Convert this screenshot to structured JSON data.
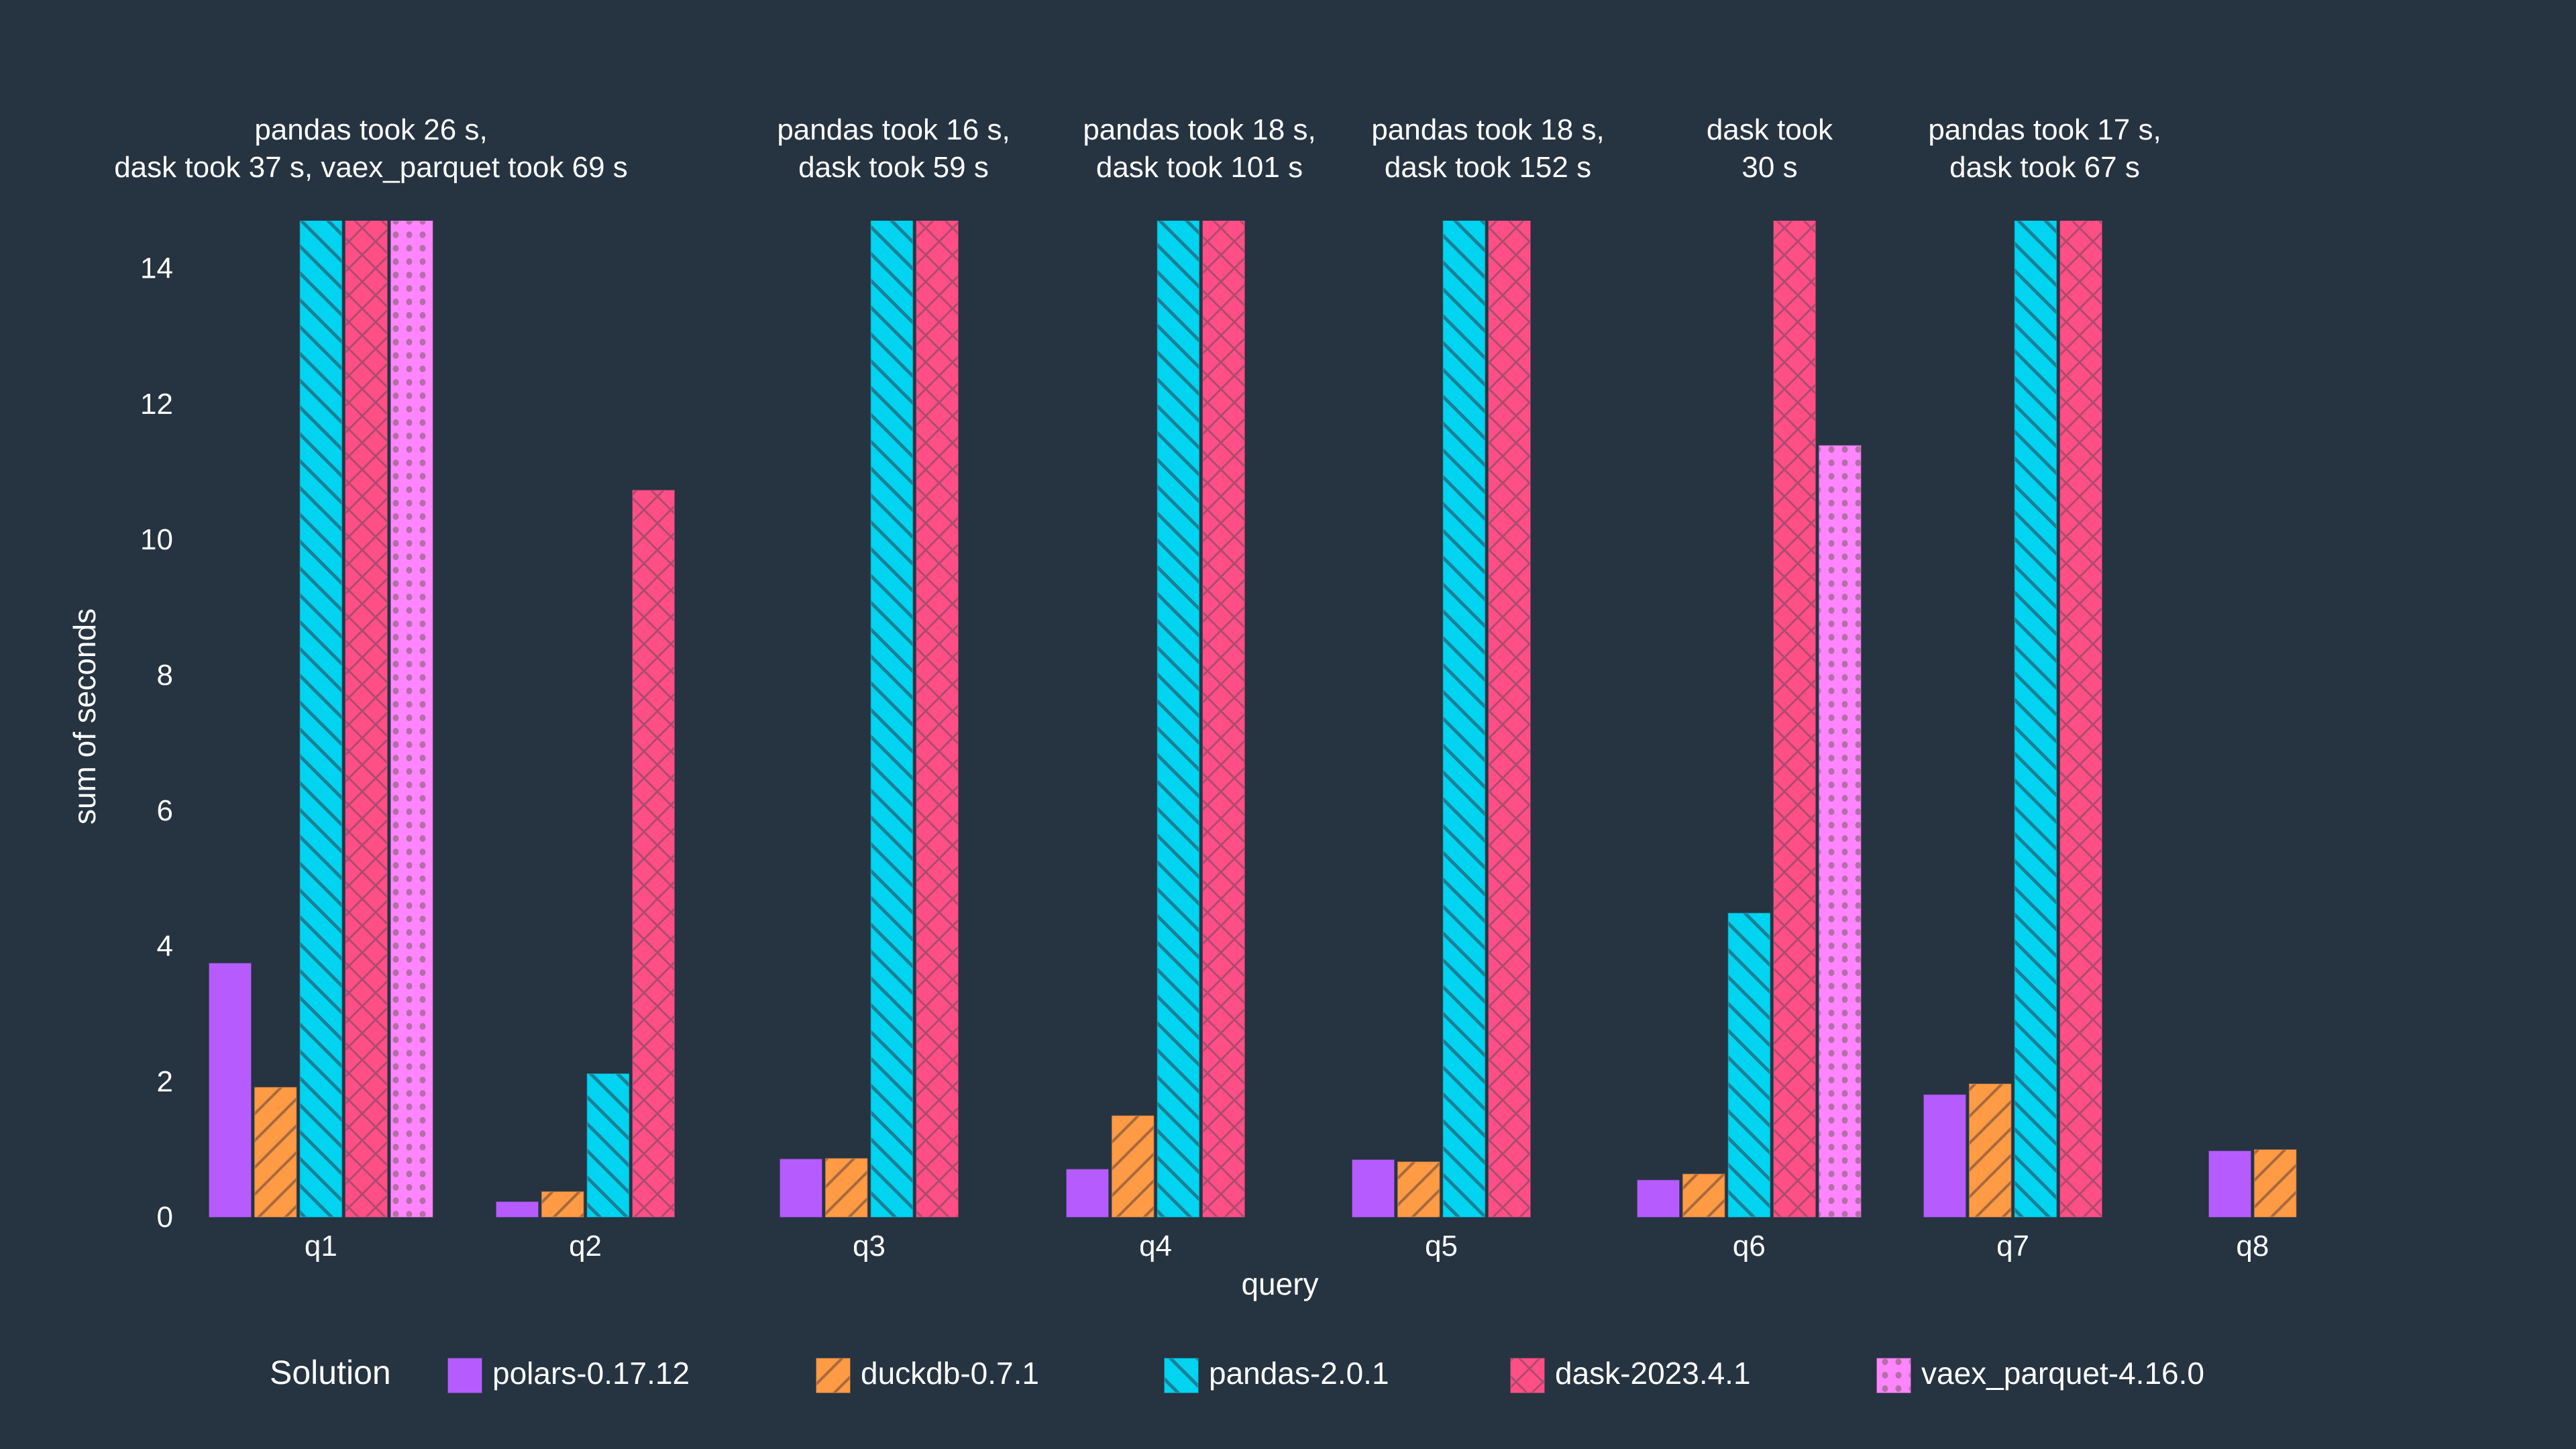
{
  "chart_data": {
    "type": "bar",
    "title": "",
    "xlabel": "query",
    "ylabel": "sum of seconds",
    "ylim": [
      0,
      14.7
    ],
    "yticks": [
      0,
      2,
      4,
      6,
      8,
      10,
      12,
      14
    ],
    "grid": false,
    "categories": [
      "q1",
      "q2",
      "q3",
      "q4",
      "q5",
      "q6",
      "q7",
      "q8"
    ],
    "legend": {
      "title": "Solution",
      "placement": "bottom"
    },
    "series": [
      {
        "name": "polars-0.17.12",
        "color": "#b65cff",
        "pattern": "solid",
        "values": [
          3.74,
          0.22,
          0.85,
          0.7,
          0.84,
          0.54,
          1.8,
          0.97
        ]
      },
      {
        "name": "duckdb-0.7.1",
        "color": "#ff9a45",
        "pattern": "forward-slash",
        "values": [
          1.91,
          0.37,
          0.86,
          1.49,
          0.81,
          0.63,
          1.96,
          0.99
        ]
      },
      {
        "name": "pandas-2.0.1",
        "color": "#00d4f0",
        "pattern": "back-slash",
        "values": [
          26,
          2.11,
          16,
          18,
          18,
          4.48,
          17,
          null
        ]
      },
      {
        "name": "dask-2023.4.1",
        "color": "#ff4f86",
        "pattern": "cross-hatch",
        "values": [
          37,
          10.72,
          59,
          101,
          152,
          30,
          67,
          null
        ]
      },
      {
        "name": "vaex_parquet-4.16.0",
        "color": "#ff85ff",
        "pattern": "dots",
        "values": [
          69,
          null,
          null,
          null,
          null,
          11.38,
          null,
          null
        ]
      }
    ],
    "annotations": [
      {
        "category": "q1",
        "lines": [
          "pandas took 26 s,",
          "dask took 37 s, vaex_parquet took 69 s"
        ]
      },
      {
        "category": "q3",
        "lines": [
          "pandas took 16 s,",
          "dask took 59 s"
        ]
      },
      {
        "category": "q4",
        "lines": [
          "pandas took 18 s,",
          "dask took 101 s"
        ]
      },
      {
        "category": "q5",
        "lines": [
          "pandas took 18 s,",
          "dask took 152 s"
        ]
      },
      {
        "category": "q6",
        "lines": [
          "dask took",
          "30 s"
        ]
      },
      {
        "category": "q7",
        "lines": [
          "pandas took 17 s,",
          "dask took 67 s"
        ]
      }
    ]
  }
}
